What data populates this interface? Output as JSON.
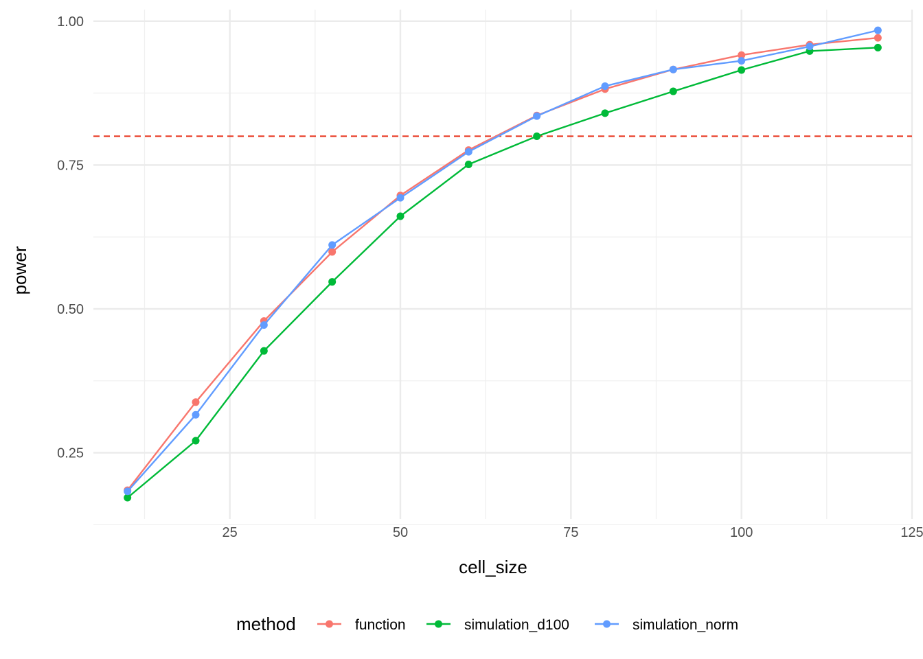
{
  "chart_data": {
    "type": "line",
    "xlabel": "cell_size",
    "ylabel": "power",
    "xlim": [
      5,
      125
    ],
    "ylim": [
      0.135,
      1.02
    ],
    "x_ticks": [
      25,
      50,
      75,
      100,
      125
    ],
    "y_ticks": [
      0.25,
      0.5,
      0.75,
      1.0
    ],
    "x_tick_labels": [
      "25",
      "50",
      "75",
      "100",
      "125"
    ],
    "y_tick_labels": [
      "0.25",
      "0.50",
      "0.75",
      "1.00"
    ],
    "grid": true,
    "legend_placement": "bottom",
    "legend_title": "method",
    "reference_line": {
      "y": 0.8,
      "color": "#e8341c",
      "style": "dashed"
    },
    "x": [
      10,
      20,
      30,
      40,
      50,
      60,
      70,
      80,
      90,
      100,
      110,
      120
    ],
    "series": [
      {
        "name": "function",
        "color": "#f8766d",
        "values": [
          0.185,
          0.338,
          0.479,
          0.599,
          0.697,
          0.776,
          0.836,
          0.882,
          0.916,
          0.941,
          0.959,
          0.971
        ]
      },
      {
        "name": "simulation_d100",
        "color": "#00ba38",
        "values": [
          0.172,
          0.271,
          0.427,
          0.547,
          0.661,
          0.751,
          0.8,
          0.84,
          0.878,
          0.915,
          0.948,
          0.954
        ]
      },
      {
        "name": "simulation_norm",
        "color": "#619cff",
        "values": [
          0.183,
          0.316,
          0.472,
          0.611,
          0.693,
          0.773,
          0.835,
          0.887,
          0.916,
          0.931,
          0.956,
          0.984
        ]
      }
    ]
  }
}
